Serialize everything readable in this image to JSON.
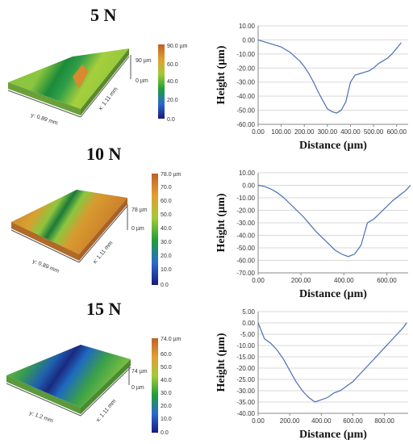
{
  "titles": [
    "5 N",
    "10 N",
    "15 N"
  ],
  "surfaces": [
    {
      "colorbar_ticks": [
        "90.0 µm",
        "60.0",
        "40.0",
        "20.0",
        "0.0"
      ],
      "z_top": "90 µm",
      "z_bottom": "0 µm",
      "y_axis": "y: 0.89 mm",
      "x_axis": "x: 1.11 mm"
    },
    {
      "colorbar_ticks": [
        "78.0 µm",
        "70.0",
        "60.0",
        "50.0",
        "40.0",
        "30.0",
        "20.0",
        "10.0",
        "0.0"
      ],
      "z_top": "78 µm",
      "z_bottom": "0 µm",
      "y_axis": "y: 0.89 mm",
      "x_axis": "x: 1.11 mm"
    },
    {
      "colorbar_ticks": [
        "74.0 µm",
        "60.0",
        "50.0",
        "40.0",
        "30.0",
        "20.0",
        "10.0",
        "0.0"
      ],
      "z_top": "74 µm",
      "z_bottom": "0 µm",
      "y_axis": "y: 1.2 mm",
      "x_axis": "x: 1.11 mm"
    }
  ],
  "colors": {
    "line": "#4a6fb5",
    "grid": "#d9d9d9",
    "axis": "#888888"
  },
  "chart_data": [
    {
      "type": "line",
      "xlabel": "Distance (µm)",
      "ylabel": "Height (µm)",
      "xlim": [
        0,
        650
      ],
      "ylim": [
        -60,
        10
      ],
      "xticks": [
        "0.00",
        "100.00",
        "200.00",
        "300.00",
        "400.00",
        "500.00",
        "600.00"
      ],
      "yticks": [
        "10.00",
        "0.00",
        "-10.00",
        "-20.00",
        "-30.00",
        "-40.00",
        "-50.00",
        "-60.00"
      ],
      "grid": true,
      "x": [
        0,
        20,
        40,
        60,
        80,
        100,
        120,
        140,
        160,
        180,
        200,
        220,
        240,
        260,
        280,
        300,
        320,
        340,
        360,
        380,
        400,
        420,
        440,
        460,
        480,
        500,
        520,
        540,
        560,
        580,
        600,
        620
      ],
      "y": [
        0,
        -1,
        -2,
        -3,
        -4,
        -5,
        -7,
        -9,
        -12,
        -15,
        -19,
        -24,
        -30,
        -37,
        -43,
        -49,
        -51,
        -52,
        -50,
        -44,
        -30,
        -25,
        -24,
        -23,
        -22,
        -20,
        -17,
        -15,
        -13,
        -10,
        -6,
        -2
      ]
    },
    {
      "type": "line",
      "xlabel": "Distance (µm)",
      "ylabel": "Height (µm)",
      "xlim": [
        0,
        700
      ],
      "ylim": [
        -70,
        10
      ],
      "xticks": [
        "0.00",
        "200.00",
        "400.00",
        "600.00"
      ],
      "yticks": [
        "10.00",
        "0.00",
        "-10.00",
        "-20.00",
        "-30.00",
        "-40.00",
        "-50.00",
        "-60.00",
        "-70.00"
      ],
      "grid": true,
      "x": [
        0,
        30,
        60,
        90,
        120,
        150,
        180,
        210,
        240,
        270,
        300,
        330,
        360,
        390,
        420,
        450,
        480,
        510,
        540,
        570,
        600,
        630,
        660,
        690,
        710
      ],
      "y": [
        0,
        -1,
        -3,
        -6,
        -10,
        -15,
        -20,
        -25,
        -31,
        -37,
        -42,
        -47,
        -52,
        -55,
        -57,
        -55,
        -48,
        -30,
        -27,
        -22,
        -17,
        -12,
        -8,
        -4,
        0
      ]
    },
    {
      "type": "line",
      "xlabel": "Distance (µm)",
      "ylabel": "Height (µm)",
      "xlim": [
        0,
        950
      ],
      "ylim": [
        -40,
        5
      ],
      "xticks": [
        "0.00",
        "200.00",
        "400.00",
        "600.00",
        "800.00"
      ],
      "yticks": [
        "5.00",
        "0.00",
        "-5.00",
        "-10.00",
        "-15.00",
        "-20.00",
        "-25.00",
        "-30.00",
        "-35.00",
        "-40.00"
      ],
      "grid": true,
      "x": [
        0,
        40,
        80,
        120,
        160,
        200,
        240,
        280,
        320,
        360,
        400,
        440,
        480,
        520,
        560,
        600,
        640,
        680,
        720,
        760,
        800,
        840,
        880,
        920,
        940
      ],
      "y": [
        0,
        -7,
        -9,
        -12,
        -16,
        -21,
        -26,
        -30,
        -33,
        -35,
        -34,
        -33,
        -31,
        -30,
        -28,
        -26,
        -23,
        -20,
        -17,
        -14,
        -11,
        -8,
        -5,
        -2,
        0
      ]
    }
  ]
}
